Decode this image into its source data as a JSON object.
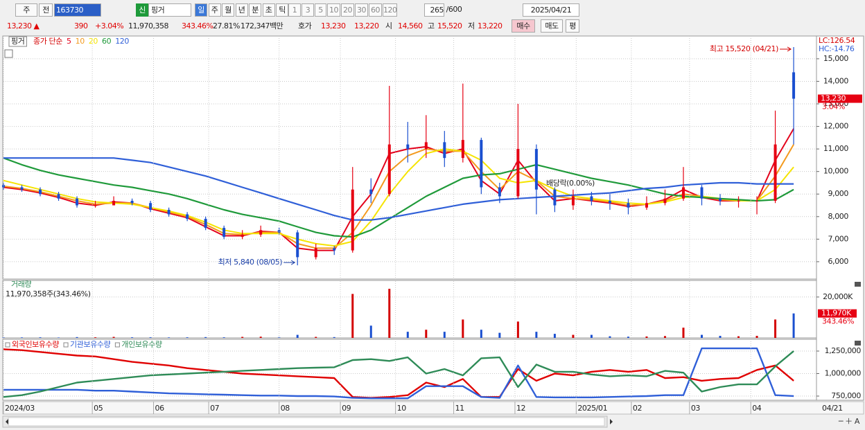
{
  "toolbar": {
    "market": "주",
    "prev": "전",
    "code": "163730",
    "new": "신",
    "name": "핑거",
    "periods": [
      "일",
      "주",
      "월",
      "년",
      "분",
      "초",
      "틱"
    ],
    "intervals": [
      "1",
      "3",
      "5",
      "10",
      "20",
      "30",
      "60",
      "120"
    ],
    "count": "265",
    "max": "/600",
    "date": "2025/04/21"
  },
  "quote": {
    "price": "13,230 ▲",
    "change": "390",
    "rate": "+3.04%",
    "volume": "11,970,358",
    "volume_ratio": "343.46%",
    "turnover": "27.81%",
    "amount": "172,347백만",
    "ask_label": "호가",
    "ask": "13,230",
    "bid": "13,220",
    "open_label": "시",
    "open": "14,560",
    "high_label": "고",
    "high": "15,520",
    "low_label": "저",
    "low": "13,220",
    "buy": "매수",
    "sell": "매도",
    "avg": "평"
  },
  "chart_data": [
    {
      "type": "candlestick",
      "title": "핑거",
      "legend_prefix": "종가 단순",
      "x": [
        0,
        6,
        12,
        18,
        24,
        30,
        36,
        42,
        48,
        54,
        60,
        66,
        72,
        78,
        84,
        90,
        96,
        102,
        108,
        114,
        120,
        126,
        132,
        138,
        144,
        150,
        156,
        162,
        168,
        174,
        180,
        186,
        192,
        198,
        204,
        210,
        216,
        222,
        228,
        234,
        240,
        246,
        252,
        258
      ],
      "open": [
        9400,
        9300,
        9200,
        9000,
        8800,
        8500,
        8500,
        8700,
        8600,
        8300,
        8100,
        7900,
        7500,
        7100,
        7200,
        7400,
        7300,
        6200,
        6600,
        6500,
        9200,
        9000,
        11200,
        11000,
        11300,
        10600,
        11400,
        9300,
        8900,
        11000,
        9200,
        8500,
        8900,
        8700,
        8600,
        8400,
        8600,
        8800,
        9300,
        8800,
        8700,
        8700,
        8700,
        14400
      ],
      "high": [
        9500,
        9400,
        9300,
        9100,
        8900,
        8700,
        8900,
        8800,
        8700,
        8400,
        8200,
        8000,
        7600,
        7400,
        7600,
        7500,
        7400,
        6800,
        6700,
        10200,
        9700,
        13800,
        12200,
        12500,
        11800,
        13900,
        11500,
        9500,
        13000,
        11200,
        9300,
        9200,
        9100,
        9000,
        8800,
        8900,
        9200,
        10200,
        9400,
        9000,
        8900,
        8900,
        12700,
        15520
      ],
      "low": [
        9200,
        9100,
        8900,
        8700,
        8400,
        8400,
        8500,
        8500,
        8200,
        8000,
        7800,
        7400,
        7000,
        7000,
        7100,
        7200,
        5840,
        6100,
        6300,
        6400,
        8600,
        8900,
        10400,
        10600,
        10200,
        10400,
        9000,
        8600,
        8800,
        8100,
        8200,
        8300,
        8500,
        8300,
        8100,
        8300,
        8500,
        8700,
        8500,
        8500,
        8400,
        8100,
        8600,
        11200
      ],
      "close": [
        9300,
        9200,
        9000,
        8800,
        8500,
        8500,
        8700,
        8600,
        8300,
        8100,
        7900,
        7500,
        7100,
        7200,
        7400,
        7300,
        6200,
        6600,
        6500,
        9200,
        9000,
        11200,
        11000,
        11300,
        10600,
        11400,
        9300,
        8900,
        11000,
        9200,
        8500,
        8900,
        8700,
        8600,
        8400,
        8600,
        8800,
        9300,
        8800,
        8700,
        8700,
        8700,
        11200,
        13230
      ],
      "up_color": "#e60012",
      "down_color": "#1a4fd0",
      "series": [
        {
          "name": "5",
          "color": "#e3001b",
          "values": [
            9300,
            9200,
            9050,
            8850,
            8600,
            8500,
            8650,
            8600,
            8350,
            8150,
            7950,
            7550,
            7150,
            7150,
            7350,
            7300,
            6600,
            6500,
            6500,
            8000,
            9000,
            10800,
            11000,
            11100,
            10800,
            11000,
            9600,
            9000,
            10500,
            9500,
            8700,
            8800,
            8700,
            8600,
            8450,
            8550,
            8750,
            9200,
            8850,
            8700,
            8700,
            8700,
            10500,
            11900
          ]
        },
        {
          "name": "10",
          "color": "#f39a1e",
          "values": [
            9350,
            9250,
            9100,
            8900,
            8700,
            8550,
            8600,
            8600,
            8400,
            8200,
            8000,
            7650,
            7250,
            7200,
            7300,
            7300,
            6800,
            6600,
            6600,
            7300,
            8500,
            10000,
            10700,
            11000,
            10900,
            10900,
            10000,
            9200,
            10000,
            9600,
            8900,
            8800,
            8750,
            8650,
            8500,
            8550,
            8700,
            9000,
            8900,
            8750,
            8700,
            8700,
            9800,
            11200
          ]
        },
        {
          "name": "20",
          "color": "#f5e400",
          "values": [
            9600,
            9400,
            9200,
            9000,
            8800,
            8650,
            8600,
            8550,
            8400,
            8250,
            8050,
            7750,
            7400,
            7250,
            7250,
            7250,
            7000,
            6800,
            6700,
            6900,
            7800,
            9000,
            10000,
            10800,
            11000,
            10900,
            10500,
            9700,
            9500,
            9600,
            9200,
            8900,
            8800,
            8700,
            8600,
            8550,
            8650,
            8850,
            8900,
            8800,
            8700,
            8700,
            9200,
            10200
          ]
        },
        {
          "name": "60",
          "color": "#1f9a3a",
          "values": [
            10600,
            10300,
            10050,
            9850,
            9700,
            9550,
            9400,
            9300,
            9150,
            9000,
            8800,
            8550,
            8300,
            8100,
            7950,
            7800,
            7550,
            7300,
            7150,
            7100,
            7400,
            7900,
            8400,
            8900,
            9300,
            9700,
            9850,
            9900,
            10100,
            10300,
            10100,
            9900,
            9700,
            9550,
            9400,
            9200,
            9000,
            8900,
            8850,
            8800,
            8750,
            8700,
            8750,
            9200
          ]
        },
        {
          "name": "120",
          "color": "#2f5fd8",
          "values": [
            10600,
            10600,
            10600,
            10600,
            10600,
            10600,
            10600,
            10500,
            10400,
            10200,
            10000,
            9800,
            9550,
            9300,
            9050,
            8800,
            8550,
            8300,
            8050,
            7850,
            7850,
            7950,
            8100,
            8250,
            8400,
            8550,
            8650,
            8750,
            8800,
            8850,
            8900,
            8950,
            9000,
            9050,
            9150,
            9250,
            9300,
            9400,
            9450,
            9500,
            9500,
            9450,
            9450,
            9450
          ]
        }
      ],
      "xlim": [
        0,
        265
      ],
      "ylim": [
        5230,
        16010
      ],
      "yticks": [
        {
          "value": 6000,
          "label": "6,000"
        },
        {
          "value": 7000,
          "label": "7,000"
        },
        {
          "value": 8000,
          "label": "8,000"
        },
        {
          "value": 9000,
          "label": "9,000"
        },
        {
          "value": 10000,
          "label": "10,000"
        },
        {
          "value": 11000,
          "label": "11,000"
        },
        {
          "value": 12000,
          "label": "12,000"
        },
        {
          "value": 13000,
          "label": "13,000"
        },
        {
          "value": 14000,
          "label": "14,000"
        },
        {
          "value": 15000,
          "label": "15,000"
        }
      ],
      "annotations": {
        "high": "최고 15,520 (04/21)",
        "low": "최저 5,840 (08/05)",
        "dividend": "배당락(0.00%)",
        "lc": "LC:126.54",
        "hc": "HC:-14.76",
        "last_price": "13,230",
        "last_change": "3.04%"
      }
    },
    {
      "type": "bar",
      "title": "거래량",
      "subtitle": "11,970,358주(343.46%)",
      "x": [
        0,
        6,
        12,
        18,
        24,
        30,
        36,
        42,
        48,
        54,
        60,
        66,
        72,
        78,
        84,
        90,
        96,
        102,
        108,
        114,
        120,
        126,
        132,
        138,
        144,
        150,
        156,
        162,
        168,
        174,
        180,
        186,
        192,
        198,
        204,
        210,
        216,
        222,
        228,
        234,
        240,
        246,
        252,
        258
      ],
      "values": [
        300000,
        250000,
        300000,
        200000,
        400000,
        300000,
        500000,
        300000,
        300000,
        250000,
        300000,
        400000,
        300000,
        500000,
        600000,
        400000,
        1500000,
        500000,
        400000,
        21500000,
        6000000,
        24000000,
        3000000,
        4000000,
        3000000,
        9000000,
        4000000,
        2500000,
        8000000,
        3000000,
        2000000,
        1500000,
        1500000,
        800000,
        600000,
        700000,
        900000,
        5000000,
        1500000,
        1000000,
        800000,
        1000000,
        9000000,
        11970358
      ],
      "xlim": [
        0,
        265
      ],
      "ylim": [
        0,
        28100000
      ],
      "yticks": [
        {
          "value": 20000000,
          "label": "20,000K"
        }
      ],
      "last_label": "11,970K",
      "last_ratio": "343.46%"
    },
    {
      "type": "line",
      "x": [
        0,
        6,
        12,
        18,
        24,
        30,
        36,
        42,
        48,
        54,
        60,
        66,
        72,
        78,
        84,
        90,
        96,
        102,
        108,
        114,
        120,
        126,
        132,
        138,
        144,
        150,
        156,
        162,
        168,
        174,
        180,
        186,
        192,
        198,
        204,
        210,
        216,
        222,
        228,
        234,
        240,
        246,
        252,
        258
      ],
      "series": [
        {
          "name": "외국인보유수량",
          "color": "#e00000",
          "values": [
            1270000,
            1260000,
            1240000,
            1220000,
            1200000,
            1190000,
            1160000,
            1130000,
            1110000,
            1090000,
            1060000,
            1040000,
            1020000,
            1000000,
            990000,
            980000,
            970000,
            960000,
            950000,
            740000,
            730000,
            740000,
            760000,
            900000,
            850000,
            940000,
            740000,
            740000,
            1050000,
            920000,
            1000000,
            980000,
            1020000,
            1040000,
            1020000,
            1040000,
            950000,
            960000,
            920000,
            940000,
            950000,
            1040000,
            1090000,
            920000
          ]
        },
        {
          "name": "기관보유수량",
          "color": "#2f5fd8",
          "values": [
            820000,
            820000,
            820000,
            820000,
            820000,
            810000,
            810000,
            800000,
            790000,
            780000,
            775000,
            770000,
            765000,
            760000,
            755000,
            755000,
            750000,
            750000,
            745000,
            730000,
            725000,
            725000,
            725000,
            860000,
            860000,
            860000,
            740000,
            730000,
            1090000,
            740000,
            735000,
            735000,
            735000,
            740000,
            745000,
            750000,
            760000,
            760000,
            1280000,
            1280000,
            1280000,
            1280000,
            760000,
            750000
          ]
        },
        {
          "name": "개인보유수량",
          "color": "#2e8b57",
          "values": [
            740000,
            760000,
            800000,
            850000,
            900000,
            920000,
            940000,
            960000,
            980000,
            990000,
            1000000,
            1010000,
            1020000,
            1030000,
            1040000,
            1050000,
            1060000,
            1065000,
            1070000,
            1150000,
            1160000,
            1140000,
            1180000,
            1000000,
            1050000,
            980000,
            1170000,
            1180000,
            850000,
            1100000,
            1020000,
            1020000,
            990000,
            970000,
            980000,
            970000,
            1030000,
            1010000,
            800000,
            850000,
            880000,
            880000,
            1080000,
            1250000
          ]
        }
      ],
      "xlim": [
        0,
        265
      ],
      "ylim": [
        703800,
        1380800
      ],
      "yticks": [
        {
          "value": 750000,
          "label": "750,000"
        },
        {
          "value": 1000000,
          "label": "1,000,000"
        },
        {
          "value": 1250000,
          "label": "1,250,000"
        }
      ],
      "xticks": [
        {
          "value": 0,
          "label": "2024/03"
        },
        {
          "value": 29,
          "label": "05"
        },
        {
          "value": 49,
          "label": "06"
        },
        {
          "value": 67,
          "label": "07"
        },
        {
          "value": 90,
          "label": "08"
        },
        {
          "value": 110,
          "label": "09"
        },
        {
          "value": 128,
          "label": "10"
        },
        {
          "value": 147,
          "label": "11"
        },
        {
          "value": 167,
          "label": "12"
        },
        {
          "value": 187,
          "label": "2025/01"
        },
        {
          "value": 205,
          "label": "02"
        },
        {
          "value": 224,
          "label": "03"
        },
        {
          "value": 244,
          "label": "04"
        }
      ],
      "x_end_label": "04/21"
    }
  ]
}
